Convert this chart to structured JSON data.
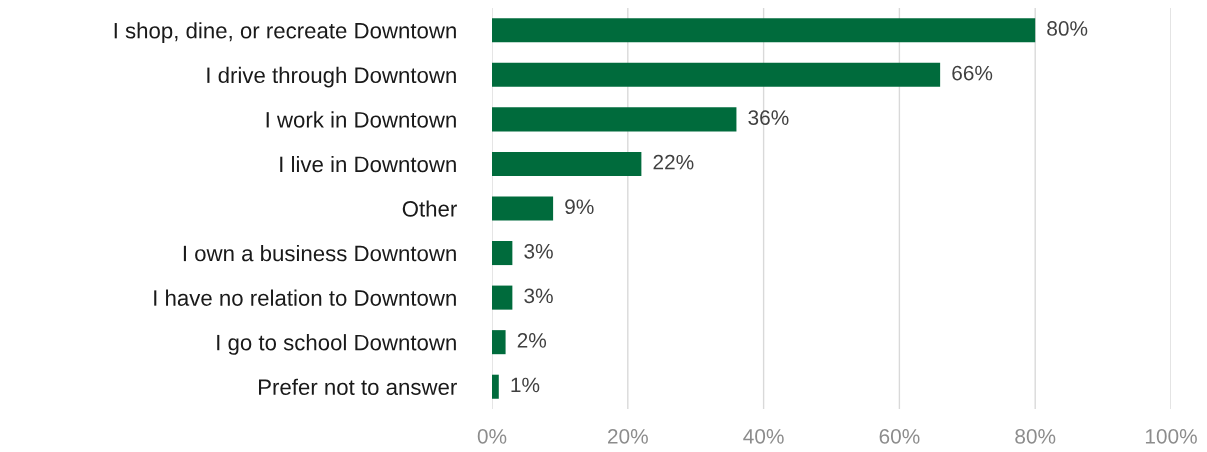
{
  "chart_data": {
    "type": "bar",
    "orientation": "horizontal",
    "categories": [
      "I shop, dine, or recreate Downtown",
      "I drive through Downtown",
      "I work in Downtown",
      "I live in Downtown",
      "Other",
      "I own a business Downtown",
      "I have no relation to Downtown",
      "I go to school Downtown",
      "Prefer not to answer"
    ],
    "values": [
      80,
      66,
      36,
      22,
      9,
      3,
      3,
      2,
      1
    ],
    "value_labels": [
      "80%",
      "66%",
      "36%",
      "22%",
      "9%",
      "3%",
      "3%",
      "2%",
      "1%"
    ],
    "color": "#006b3c",
    "xlim": [
      0,
      100
    ],
    "xticks": [
      {
        "value": 0,
        "label": "0%"
      },
      {
        "value": 20,
        "label": "20%"
      },
      {
        "value": 40,
        "label": "40%"
      },
      {
        "value": 60,
        "label": "60%"
      },
      {
        "value": 80,
        "label": "80%"
      },
      {
        "value": 100,
        "label": "100%"
      }
    ],
    "grid": "x",
    "legend": false
  }
}
